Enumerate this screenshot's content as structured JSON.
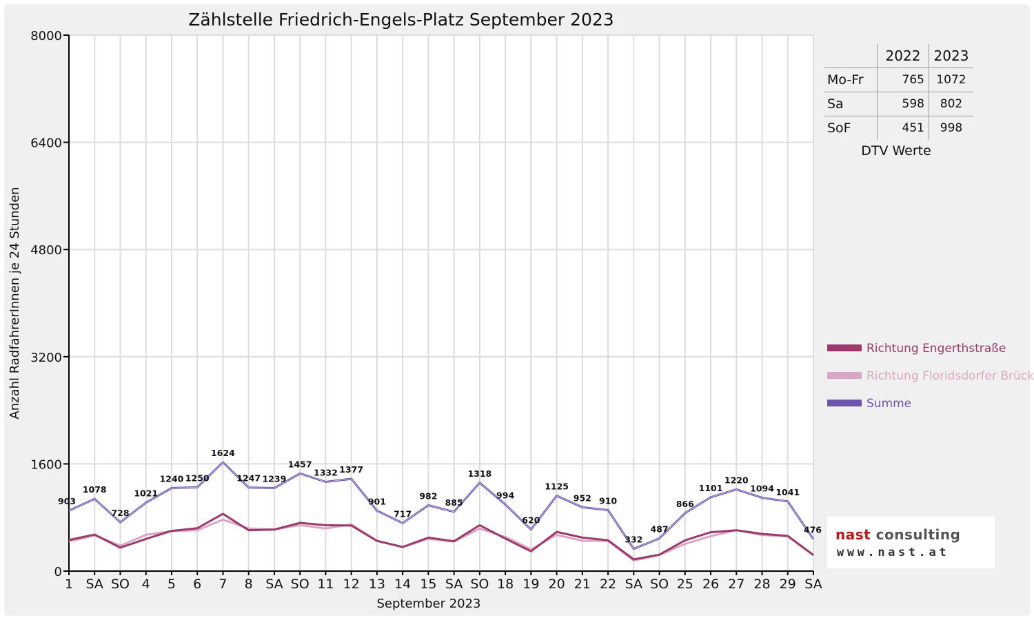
{
  "colors": {
    "engerth": "#9b3a6b",
    "floridsdorf": "#dba6c3",
    "summe": "#6b55b0",
    "sunday": "#e00000"
  },
  "chart_data": {
    "type": "line",
    "title": "Zählstelle Friedrich-Engels-Platz September 2023",
    "xlabel": "September 2023",
    "ylabel": "Anzahl RadfahrerInnen je 24 Stunden",
    "ylim": [
      0,
      8000
    ],
    "yticks": [
      "0",
      "1600",
      "3200",
      "4800",
      "6400",
      "8000"
    ],
    "categories": [
      "1",
      "SA",
      "SO",
      "4",
      "5",
      "6",
      "7",
      "8",
      "SA",
      "SO",
      "11",
      "12",
      "13",
      "14",
      "15",
      "SA",
      "SO",
      "18",
      "19",
      "20",
      "21",
      "22",
      "SA",
      "SO",
      "25",
      "26",
      "27",
      "28",
      "29",
      "SA"
    ],
    "sunday_indices": [
      2,
      9,
      16,
      23
    ],
    "grid": true,
    "legend_position": "right",
    "series": [
      {
        "name": "Richtung Engerthstraße",
        "values": [
          465,
          545,
          350,
          480,
          600,
          640,
          855,
          610,
          620,
          720,
          685,
          680,
          450,
          360,
          500,
          445,
          685,
          485,
          295,
          585,
          500,
          460,
          175,
          245,
          460,
          580,
          610,
          555,
          525,
          240
        ]
      },
      {
        "name": "Richtung Floridsdorfer Brücke",
        "values": [
          440,
          535,
          378,
          541,
          595,
          610,
          769,
          637,
          619,
          687,
          637,
          697,
          451,
          357,
          482,
          440,
          633,
          509,
          325,
          540,
          452,
          450,
          157,
          242,
          406,
          521,
          610,
          539,
          516,
          236
        ]
      },
      {
        "name": "Summe",
        "values": [
          903,
          1078,
          728,
          1021,
          1240,
          1250,
          1624,
          1247,
          1239,
          1457,
          1332,
          1377,
          901,
          717,
          982,
          885,
          1318,
          994,
          620,
          1125,
          952,
          910,
          332,
          487,
          866,
          1101,
          1220,
          1094,
          1041,
          476
        ]
      }
    ],
    "data_labels": [
      "903",
      "1078",
      "728",
      "1021",
      "1240",
      "1250",
      "1624",
      "1247",
      "1239",
      "1457",
      "1332",
      "1377",
      "901",
      "717",
      "982",
      "885",
      "1318",
      "994",
      "620",
      "1125",
      "952",
      "910",
      "332",
      "487",
      "866",
      "1101",
      "1220",
      "1094",
      "1041",
      "476"
    ]
  },
  "dtv_table": {
    "headers": [
      "2022",
      "2023"
    ],
    "rows": [
      {
        "label": "Mo-Fr",
        "v2022": "765",
        "v2023": "1072"
      },
      {
        "label": "Sa",
        "v2022": "598",
        "v2023": "802"
      },
      {
        "label": "SoF",
        "v2022": "451",
        "v2023": "998"
      }
    ],
    "caption": "DTV Werte"
  },
  "logo": {
    "name_part1": "nast",
    "name_part2": " consulting",
    "url": "www.nast.at"
  }
}
